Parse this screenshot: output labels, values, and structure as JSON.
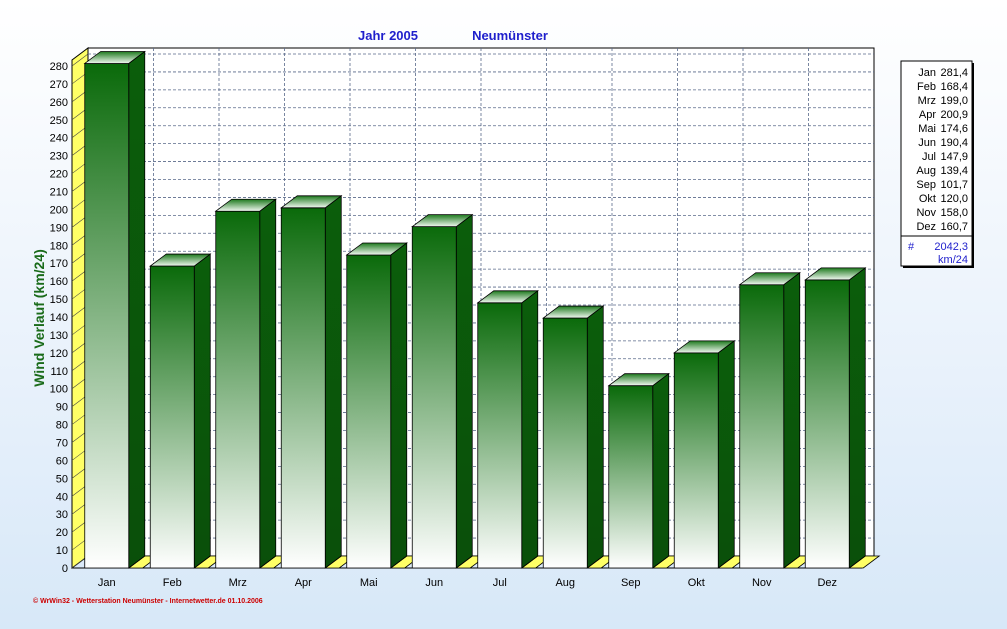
{
  "title": {
    "year": "Jahr  2005",
    "station": "Neumünster"
  },
  "footer": "© WrWin32 - Wetterstation Neumünster - Internetwetter.de  01.10.2006",
  "colors": {
    "bar_top": "#0a6a0a",
    "bar_bottom": "#ffffff",
    "bar_side": "#0b5e0b",
    "bar_cap": "#e6f2e6",
    "floor": "#ffff66",
    "grid": "#5a6a8a",
    "title": "#1f1fcc",
    "ylabel": "#1a6b1a"
  },
  "chart_data": {
    "type": "bar",
    "ylabel": "Wind Verlauf  (km/24)",
    "ylim": [
      0,
      280
    ],
    "ytick_step": 10,
    "grid": true,
    "legend_position": "right",
    "categories": [
      "Jan",
      "Feb",
      "Mrz",
      "Apr",
      "Mai",
      "Jun",
      "Jul",
      "Aug",
      "Sep",
      "Okt",
      "Nov",
      "Dez"
    ],
    "values": [
      281.4,
      168.4,
      199.0,
      200.9,
      174.6,
      190.4,
      147.9,
      139.4,
      101.7,
      120.0,
      158.0,
      160.7
    ],
    "value_labels": [
      "281,4",
      "168,4",
      "199,0",
      "200,9",
      "174,6",
      "190,4",
      "147,9",
      "139,4",
      "101,7",
      "120,0",
      "158,0",
      "160,7"
    ],
    "total": {
      "symbol": "#",
      "value": "2042,3",
      "unit": "km/24"
    }
  }
}
